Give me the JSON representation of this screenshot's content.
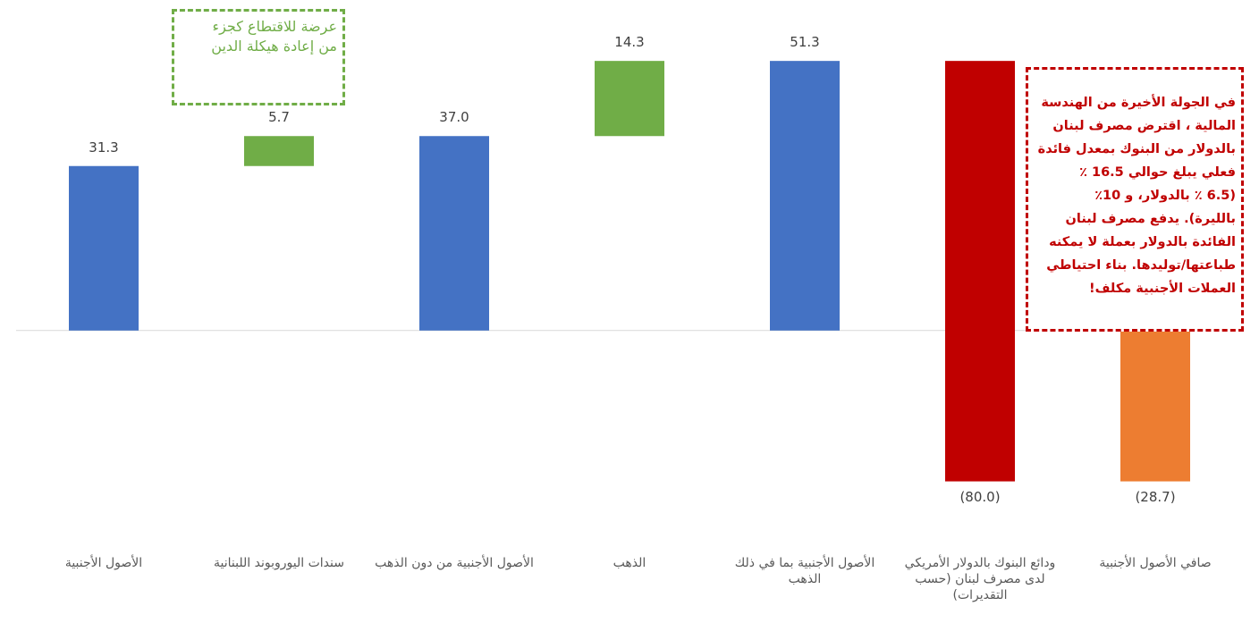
{
  "chart_data": {
    "type": "waterfall",
    "categories": [
      "الأصول الأجنبية",
      "سندات اليوروبوند اللبنانية",
      "الأصول الأجنبية من دون الذهب",
      "الذهب",
      "الأصول الأجنبية بما في ذلك الذهب",
      "ودائع البنوك بالدولار الأمريكي لدى مصرف لبنان (حسب التقديرات)",
      "صافي الأصول الأجنبية"
    ],
    "values": [
      31.3,
      5.7,
      37.0,
      14.3,
      51.3,
      -80.0,
      -28.7
    ],
    "value_labels": [
      "31.3",
      "5.7",
      "37.0",
      "14.3",
      "51.3",
      "(80.0)",
      "(28.7)"
    ],
    "measure": [
      "total",
      "relative",
      "total",
      "relative",
      "total",
      "relative",
      "total"
    ],
    "colors": [
      "#4472c4",
      "#70ad47",
      "#4472c4",
      "#70ad47",
      "#4472c4",
      "#c00000",
      "#ed7d31"
    ],
    "ylim": [
      -40,
      60
    ],
    "annotations": [
      {
        "lines": [
          "عرضة للاقتطاع كجزء",
          "من إعادة هيكلة الدين"
        ],
        "color": "#70ad47"
      },
      {
        "lines": [
          "في الجولة الأخيرة من الهندسة",
          "المالية ، اقترض مصرف لبنان",
          "بالدولار من البنوك بمعدل فائدة",
          "فعلي يبلغ حوالي 16.5 ٪",
          "(6.5 ٪ بالدولار، و 10٪",
          "بالليرة). يدفع مصرف لبنان",
          "الفائدة بالدولار بعملة لا يمكنه",
          "طباعتها/توليدها. بناء احتياطي",
          "العملات الأجنبية مكلف!"
        ],
        "color": "#c00000"
      }
    ]
  }
}
